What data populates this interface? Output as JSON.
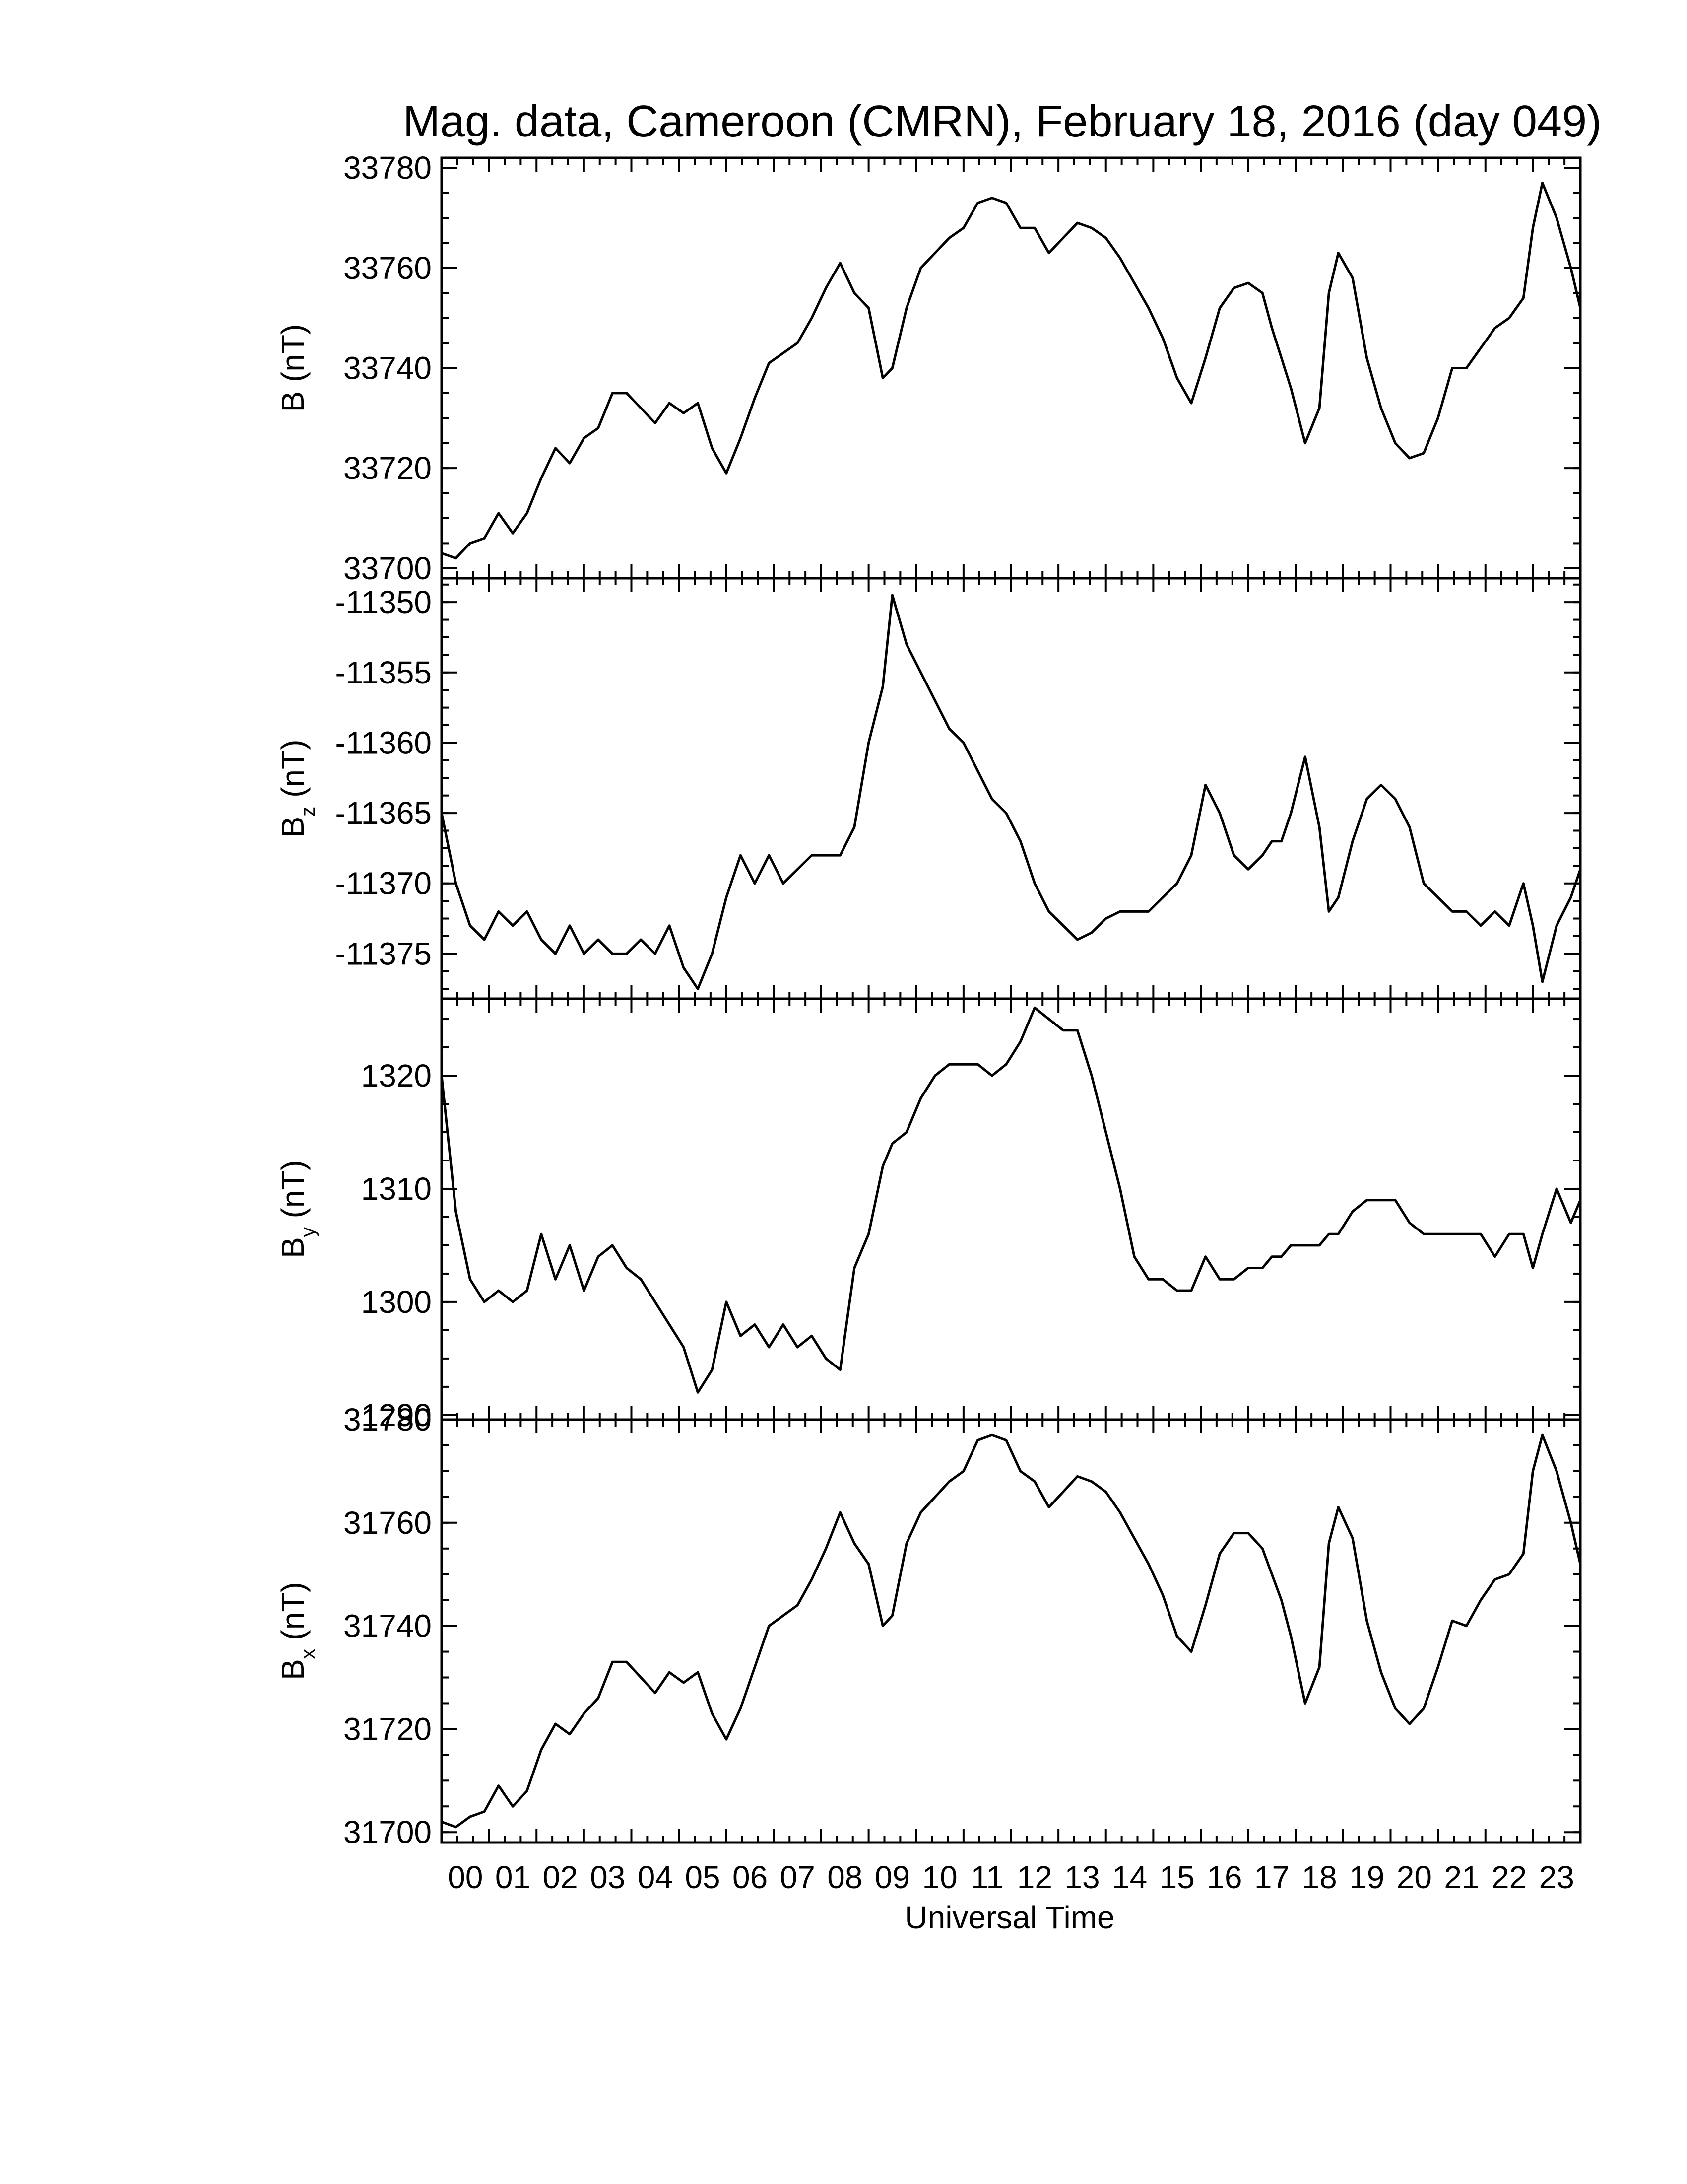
{
  "chart_data": {
    "type": "line",
    "title": "Mag. data, Cameroon (CMRN), February 18, 2016 (day 049)",
    "xlabel": "Universal Time",
    "x_tick_labels": [
      "00",
      "01",
      "02",
      "03",
      "04",
      "05",
      "06",
      "07",
      "08",
      "09",
      "10",
      "11",
      "12",
      "13",
      "14",
      "15",
      "16",
      "17",
      "18",
      "19",
      "20",
      "21",
      "22",
      "23"
    ],
    "xlim": [
      0,
      24
    ],
    "line_color": "#000000",
    "panels": [
      {
        "ylabel": "B (nT)",
        "ylabel_sub": "",
        "ylim": [
          33698,
          33782
        ],
        "yticks": [
          33700,
          33720,
          33740,
          33760,
          33780
        ],
        "x": [
          0,
          0.3,
          0.6,
          0.9,
          1.2,
          1.5,
          1.8,
          2.1,
          2.4,
          2.7,
          3.0,
          3.3,
          3.6,
          3.9,
          4.2,
          4.5,
          4.8,
          5.1,
          5.4,
          5.7,
          6.0,
          6.3,
          6.6,
          6.9,
          7.2,
          7.5,
          7.8,
          8.1,
          8.4,
          8.7,
          9.0,
          9.3,
          9.5,
          9.8,
          10.1,
          10.4,
          10.7,
          11.0,
          11.3,
          11.6,
          11.9,
          12.2,
          12.5,
          12.8,
          13.1,
          13.4,
          13.7,
          14.0,
          14.3,
          14.6,
          14.9,
          15.2,
          15.5,
          15.8,
          16.1,
          16.4,
          16.7,
          17.0,
          17.3,
          17.5,
          17.7,
          17.9,
          18.2,
          18.5,
          18.7,
          18.9,
          19.2,
          19.5,
          19.8,
          20.1,
          20.4,
          20.7,
          21.0,
          21.3,
          21.6,
          21.9,
          22.2,
          22.5,
          22.8,
          23.0,
          23.2,
          23.5,
          23.8,
          24.0
        ],
        "y": [
          33703,
          33702,
          33705,
          33706,
          33711,
          33707,
          33711,
          33718,
          33724,
          33721,
          33726,
          33728,
          33735,
          33735,
          33732,
          33729,
          33733,
          33731,
          33733,
          33724,
          33719,
          33726,
          33734,
          33741,
          33743,
          33745,
          33750,
          33756,
          33761,
          33755,
          33752,
          33738,
          33740,
          33752,
          33760,
          33763,
          33766,
          33768,
          33773,
          33774,
          33773,
          33768,
          33768,
          33763,
          33766,
          33769,
          33768,
          33766,
          33762,
          33757,
          33752,
          33746,
          33738,
          33733,
          33742,
          33752,
          33756,
          33757,
          33755,
          33748,
          33742,
          33736,
          33725,
          33732,
          33755,
          33763,
          33758,
          33742,
          33732,
          33725,
          33722,
          33723,
          33730,
          33740,
          33740,
          33744,
          33748,
          33750,
          33754,
          33768,
          33777,
          33770,
          33760,
          33752
        ]
      },
      {
        "ylabel": "B",
        "ylabel_sub": "z",
        "ylabel_unit": "(nT)",
        "ylim": [
          -11378.2,
          -11348.3
        ],
        "yticks": [
          -11375,
          -11370,
          -11365,
          -11360,
          -11355,
          -11350
        ],
        "x": [
          0,
          0.3,
          0.6,
          0.9,
          1.2,
          1.5,
          1.8,
          2.1,
          2.4,
          2.7,
          3.0,
          3.3,
          3.6,
          3.9,
          4.2,
          4.5,
          4.8,
          5.1,
          5.4,
          5.7,
          6.0,
          6.3,
          6.6,
          6.9,
          7.2,
          7.5,
          7.8,
          8.1,
          8.4,
          8.7,
          9.0,
          9.3,
          9.5,
          9.8,
          10.1,
          10.4,
          10.7,
          11.0,
          11.3,
          11.6,
          11.9,
          12.2,
          12.5,
          12.8,
          13.1,
          13.4,
          13.7,
          14.0,
          14.3,
          14.6,
          14.9,
          15.2,
          15.5,
          15.8,
          16.1,
          16.4,
          16.7,
          17.0,
          17.3,
          17.5,
          17.7,
          17.9,
          18.2,
          18.5,
          18.7,
          18.9,
          19.2,
          19.5,
          19.8,
          20.1,
          20.4,
          20.7,
          21.0,
          21.3,
          21.6,
          21.9,
          22.2,
          22.5,
          22.8,
          23.0,
          23.2,
          23.5,
          23.8,
          24.0
        ],
        "y": [
          -11365,
          -11370,
          -11373,
          -11374,
          -11372,
          -11373,
          -11372,
          -11374,
          -11375,
          -11373,
          -11375,
          -11374,
          -11375,
          -11375,
          -11374,
          -11375,
          -11373,
          -11376,
          -11377.5,
          -11375,
          -11371,
          -11368,
          -11370,
          -11368,
          -11370,
          -11369,
          -11368,
          -11368,
          -11368,
          -11366,
          -11360,
          -11356,
          -11349.5,
          -11353,
          -11355,
          -11357,
          -11359,
          -11360,
          -11362,
          -11364,
          -11365,
          -11367,
          -11370,
          -11372,
          -11373,
          -11374,
          -11373.5,
          -11372.5,
          -11372,
          -11372,
          -11372,
          -11371,
          -11370,
          -11368,
          -11363,
          -11365,
          -11368,
          -11369,
          -11368,
          -11367,
          -11367,
          -11365,
          -11361,
          -11366,
          -11372,
          -11371,
          -11367,
          -11364,
          -11363,
          -11364,
          -11366,
          -11370,
          -11371,
          -11372,
          -11372,
          -11373,
          -11372,
          -11373,
          -11370,
          -11373,
          -11377,
          -11373,
          -11371,
          -11369
        ]
      },
      {
        "ylabel": "B",
        "ylabel_sub": "y",
        "ylabel_unit": "(nT)",
        "ylim": [
          1289.6,
          1326.8
        ],
        "yticks": [
          1290,
          1300,
          1310,
          1320
        ],
        "x": [
          0,
          0.3,
          0.6,
          0.9,
          1.2,
          1.5,
          1.8,
          2.1,
          2.4,
          2.7,
          3.0,
          3.3,
          3.6,
          3.9,
          4.2,
          4.5,
          4.8,
          5.1,
          5.4,
          5.7,
          6.0,
          6.3,
          6.6,
          6.9,
          7.2,
          7.5,
          7.8,
          8.1,
          8.4,
          8.7,
          9.0,
          9.3,
          9.5,
          9.8,
          10.1,
          10.4,
          10.7,
          11.0,
          11.3,
          11.6,
          11.9,
          12.2,
          12.5,
          12.8,
          13.1,
          13.4,
          13.7,
          14.0,
          14.3,
          14.6,
          14.9,
          15.2,
          15.5,
          15.8,
          16.1,
          16.4,
          16.7,
          17.0,
          17.3,
          17.5,
          17.7,
          17.9,
          18.2,
          18.5,
          18.7,
          18.9,
          19.2,
          19.5,
          19.8,
          20.1,
          20.4,
          20.7,
          21.0,
          21.3,
          21.6,
          21.9,
          22.2,
          22.5,
          22.8,
          23.0,
          23.2,
          23.5,
          23.8,
          24.0
        ],
        "y": [
          1320,
          1308,
          1302,
          1300,
          1301,
          1300,
          1301,
          1306,
          1302,
          1305,
          1301,
          1304,
          1305,
          1303,
          1302,
          1300,
          1298,
          1296,
          1292,
          1294,
          1300,
          1297,
          1298,
          1296,
          1298,
          1296,
          1297,
          1295,
          1294,
          1303,
          1306,
          1312,
          1314,
          1315,
          1318,
          1320,
          1321,
          1321,
          1321,
          1320,
          1321,
          1323,
          1326,
          1325,
          1324,
          1324,
          1320,
          1315,
          1310,
          1304,
          1302,
          1302,
          1301,
          1301,
          1304,
          1302,
          1302,
          1303,
          1303,
          1304,
          1304,
          1305,
          1305,
          1305,
          1306,
          1306,
          1308,
          1309,
          1309,
          1309,
          1307,
          1306,
          1306,
          1306,
          1306,
          1306,
          1304,
          1306,
          1306,
          1303,
          1306,
          1310,
          1307,
          1309
        ]
      },
      {
        "ylabel": "B",
        "ylabel_sub": "x",
        "ylabel_unit": "(nT)",
        "ylim": [
          31698,
          31780
        ],
        "yticks": [
          31700,
          31720,
          31740,
          31760,
          31780
        ],
        "x": [
          0,
          0.3,
          0.6,
          0.9,
          1.2,
          1.5,
          1.8,
          2.1,
          2.4,
          2.7,
          3.0,
          3.3,
          3.6,
          3.9,
          4.2,
          4.5,
          4.8,
          5.1,
          5.4,
          5.7,
          6.0,
          6.3,
          6.6,
          6.9,
          7.2,
          7.5,
          7.8,
          8.1,
          8.4,
          8.7,
          9.0,
          9.3,
          9.5,
          9.8,
          10.1,
          10.4,
          10.7,
          11.0,
          11.3,
          11.6,
          11.9,
          12.2,
          12.5,
          12.8,
          13.1,
          13.4,
          13.7,
          14.0,
          14.3,
          14.6,
          14.9,
          15.2,
          15.5,
          15.8,
          16.1,
          16.4,
          16.7,
          17.0,
          17.3,
          17.5,
          17.7,
          17.9,
          18.2,
          18.5,
          18.7,
          18.9,
          19.2,
          19.5,
          19.8,
          20.1,
          20.4,
          20.7,
          21.0,
          21.3,
          21.6,
          21.9,
          22.2,
          22.5,
          22.8,
          23.0,
          23.2,
          23.5,
          23.8,
          24.0
        ],
        "y": [
          31702,
          31701,
          31703,
          31704,
          31709,
          31705,
          31708,
          31716,
          31721,
          31719,
          31723,
          31726,
          31733,
          31733,
          31730,
          31727,
          31731,
          31729,
          31731,
          31723,
          31718,
          31724,
          31732,
          31740,
          31742,
          31744,
          31749,
          31755,
          31762,
          31756,
          31752,
          31740,
          31742,
          31756,
          31762,
          31765,
          31768,
          31770,
          31776,
          31777,
          31776,
          31770,
          31768,
          31763,
          31766,
          31769,
          31768,
          31766,
          31762,
          31757,
          31752,
          31746,
          31738,
          31735,
          31744,
          31754,
          31758,
          31758,
          31755,
          31750,
          31745,
          31738,
          31725,
          31732,
          31756,
          31763,
          31757,
          31741,
          31731,
          31724,
          31721,
          31724,
          31732,
          31741,
          31740,
          31745,
          31749,
          31750,
          31754,
          31770,
          31777,
          31770,
          31760,
          31752
        ]
      }
    ]
  }
}
